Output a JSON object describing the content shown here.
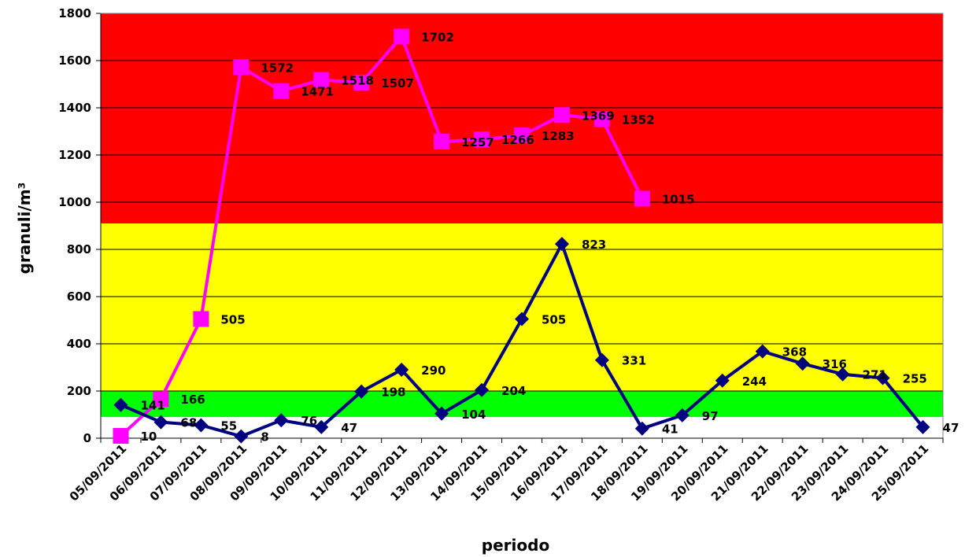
{
  "chart_data": {
    "type": "line",
    "title": "",
    "xlabel": "periodo",
    "ylabel": "granuli/m³",
    "ylim": [
      0,
      1800
    ],
    "yticks": [
      0,
      200,
      400,
      600,
      800,
      1000,
      1200,
      1400,
      1600,
      1800
    ],
    "grid": "horizontal",
    "legend": "none",
    "categories": [
      "05/09/2011",
      "06/09/2011",
      "07/09/2011",
      "08/09/2011",
      "09/09/2011",
      "10/09/2011",
      "11/09/2011",
      "12/09/2011",
      "13/09/2011",
      "14/09/2011",
      "15/09/2011",
      "16/09/2011",
      "17/09/2011",
      "18/09/2011",
      "19/09/2011",
      "20/09/2011",
      "21/09/2011",
      "22/09/2011",
      "23/09/2011",
      "24/09/2011",
      "25/09/2011"
    ],
    "bands": [
      {
        "from": 0,
        "to": 90,
        "color": "#ffffff"
      },
      {
        "from": 90,
        "to": 200,
        "color": "#00ff00"
      },
      {
        "from": 200,
        "to": 910,
        "color": "#ffff00"
      },
      {
        "from": 910,
        "to": 1800,
        "color": "#ff0000"
      }
    ],
    "series": [
      {
        "color": "#ff00ff",
        "marker": "square",
        "values": [
          10,
          166,
          505,
          1572,
          1471,
          1518,
          1507,
          1702,
          1257,
          1266,
          1283,
          1369,
          1352,
          1015,
          null,
          null,
          null,
          null,
          null,
          null,
          null
        ],
        "labels": [
          "10",
          "166",
          "505",
          "1572",
          "1471",
          "1518",
          "1507",
          "1702",
          "1257",
          "1266",
          "1283",
          "1369",
          "1352",
          "1015",
          null,
          null,
          null,
          null,
          null,
          null,
          null
        ]
      },
      {
        "color": "#000080",
        "marker": "diamond",
        "values": [
          141,
          68,
          55,
          8,
          76,
          47,
          198,
          290,
          104,
          204,
          505,
          823,
          331,
          41,
          97,
          244,
          368,
          316,
          271,
          255,
          47
        ],
        "labels": [
          "141",
          "68",
          "55",
          "8",
          "76",
          "47",
          "198",
          "290",
          "104",
          "204",
          "505",
          "823",
          "331",
          "41",
          "97",
          "244",
          "368",
          "316",
          "271",
          "255",
          "47"
        ]
      }
    ]
  }
}
